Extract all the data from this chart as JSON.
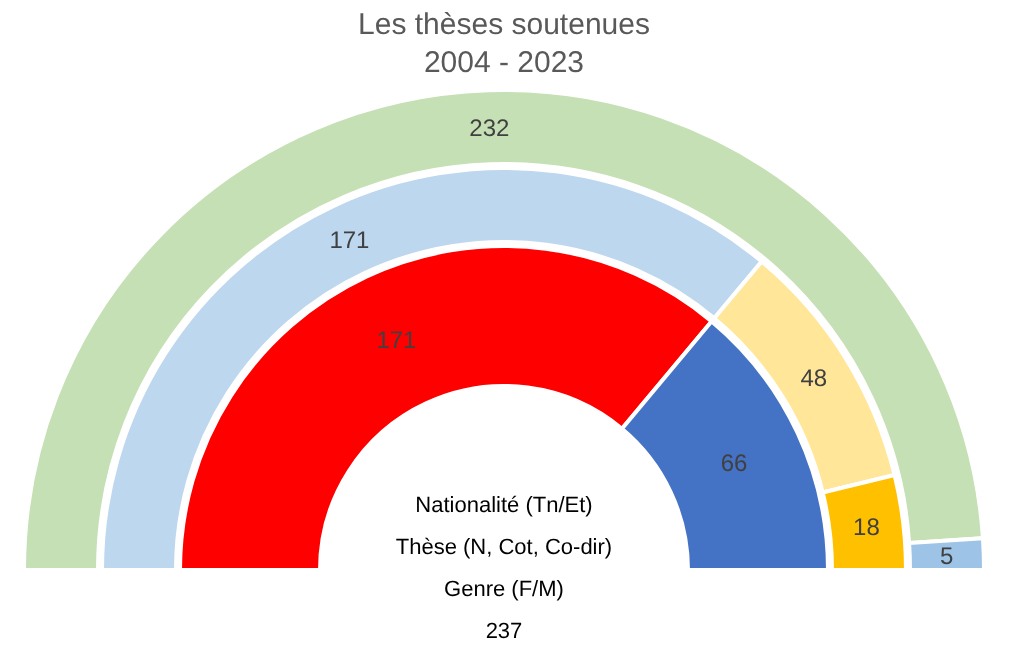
{
  "chart_data": {
    "type": "donut",
    "title": "Les thèses soutenues",
    "subtitle": "2004 - 2023",
    "series": [
      {
        "values": [
          232,
          5
        ],
        "colors": [
          "#c5e0b4",
          "#9dc3e6"
        ]
      },
      {
        "values": [
          171,
          48,
          18
        ],
        "colors": [
          "#bdd7ee",
          "#ffe699",
          "#ffc000"
        ]
      },
      {
        "values": [
          171,
          66
        ],
        "colors": [
          "#ff0000",
          "#4472c4"
        ]
      }
    ],
    "data_labels": true,
    "annotations": [
      "Nationalité (Tn/Et)",
      "Thèse (N, Cot, Co-dir)",
      "Genre (F/M)",
      "237"
    ]
  }
}
